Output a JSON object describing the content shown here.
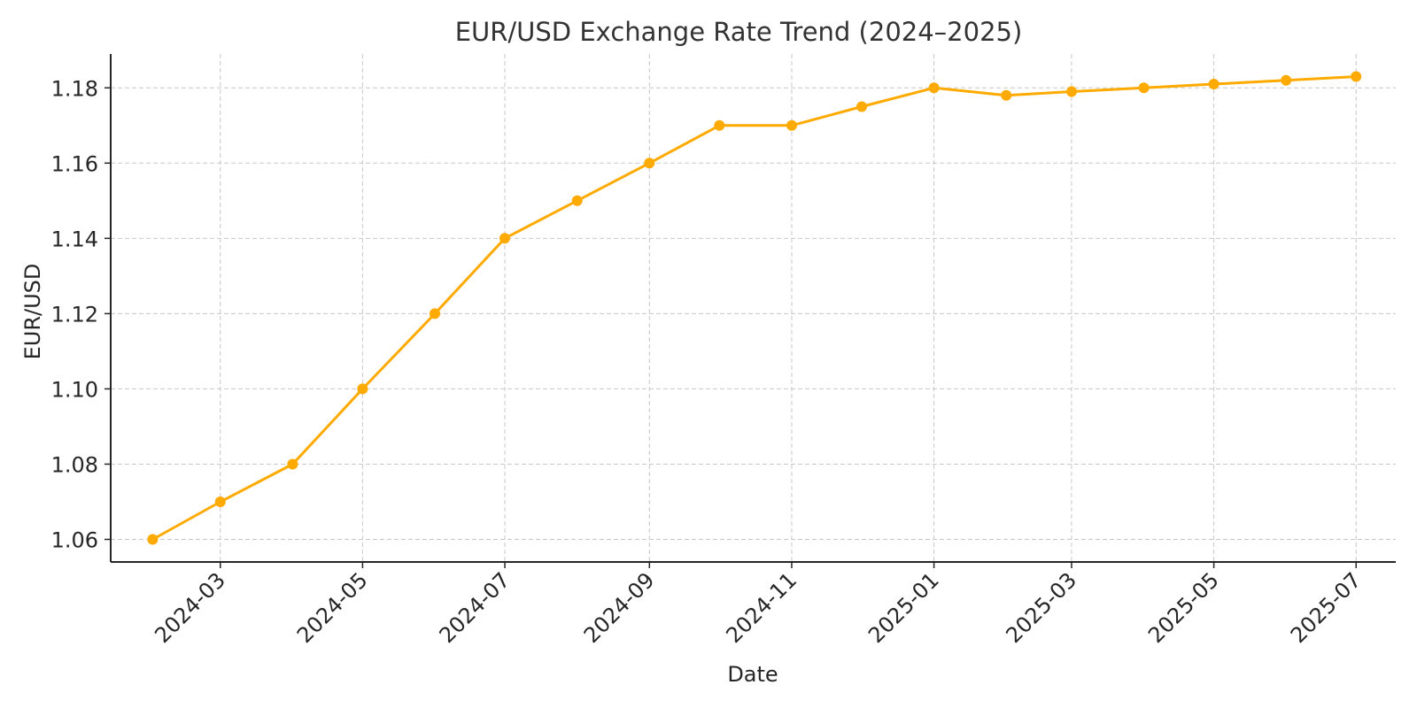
{
  "chart_data": {
    "type": "line",
    "title": "EUR/USD Exchange Rate Trend (2024–2025)",
    "xlabel": "Date",
    "ylabel": "EUR/USD",
    "x": [
      "2024-02-01",
      "2024-03-01",
      "2024-04-01",
      "2024-05-01",
      "2024-06-01",
      "2024-07-01",
      "2024-08-01",
      "2024-09-01",
      "2024-10-01",
      "2024-11-01",
      "2024-12-01",
      "2025-01-01",
      "2025-02-01",
      "2025-03-01",
      "2025-04-01",
      "2025-05-01",
      "2025-06-01",
      "2025-07-01"
    ],
    "series": [
      {
        "values": [
          1.06,
          1.07,
          1.08,
          1.1,
          1.12,
          1.14,
          1.15,
          1.16,
          1.17,
          1.17,
          1.175,
          1.18,
          1.178,
          1.179,
          1.18,
          1.181,
          1.182,
          1.183
        ],
        "color": "#FFAA00"
      }
    ],
    "x_ticks": [
      "2024-03",
      "2024-05",
      "2024-07",
      "2024-09",
      "2024-11",
      "2025-01",
      "2025-03",
      "2025-05",
      "2025-07"
    ],
    "y_ticks": [
      "1.06",
      "1.08",
      "1.10",
      "1.12",
      "1.14",
      "1.16",
      "1.18"
    ],
    "ylim": [
      1.054,
      1.189
    ],
    "xlim": [
      "2024-01-14",
      "2025-07-18"
    ],
    "grid": true,
    "legend": "none"
  }
}
